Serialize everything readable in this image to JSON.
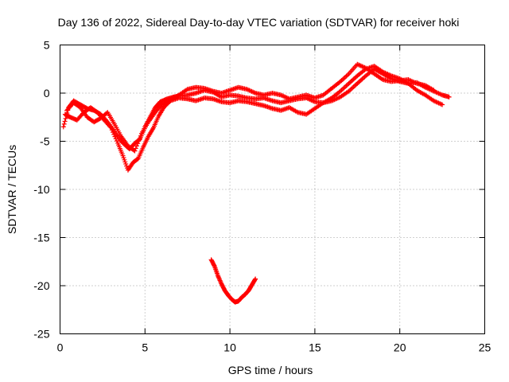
{
  "chart_data": {
    "type": "scatter",
    "title": "Day 136 of 2022, Sidereal Day-to-day VTEC variation (SDTVAR) for receiver hoki",
    "xlabel": "GPS time / hours",
    "ylabel": "SDTVAR / TECUs",
    "xlim": [
      0,
      25
    ],
    "ylim": [
      -25,
      5
    ],
    "xticks": [
      0,
      5,
      10,
      15,
      20,
      25
    ],
    "yticks": [
      5,
      0,
      -5,
      -10,
      -15,
      -20,
      -25
    ],
    "xtick_labels": [
      "0",
      "5",
      "10",
      "15",
      "20",
      "25"
    ],
    "ytick_labels": [
      "5",
      "0",
      "-5",
      "-10",
      "-15",
      "-20",
      "-25"
    ],
    "grid": true,
    "marker": "+",
    "color": "#ff0000",
    "series": [
      {
        "name": "main-band-a",
        "x": [
          0.2,
          0.5,
          0.8,
          1.2,
          1.6,
          2.0,
          2.4,
          2.8,
          3.2,
          3.6,
          3.9,
          4.1,
          4.4,
          4.7,
          5.0,
          5.3,
          5.6,
          5.9,
          6.3,
          6.7,
          7.0,
          7.5,
          8.0,
          8.5,
          9.0,
          9.5,
          10.0,
          10.5,
          11.0,
          11.5,
          12.0,
          12.5,
          13.0,
          13.5,
          14.0,
          14.5,
          15.0,
          15.5,
          16.0,
          16.5,
          17.0,
          17.5,
          18.0,
          18.5,
          19.0,
          19.5,
          20.0,
          20.5,
          21.0,
          21.5,
          22.0,
          22.5,
          22.9
        ],
        "y": [
          -3.5,
          -1.5,
          -0.8,
          -1.2,
          -1.6,
          -1.8,
          -2.2,
          -3.0,
          -4.0,
          -5.0,
          -5.5,
          -5.8,
          -5.2,
          -4.8,
          -3.5,
          -2.5,
          -1.5,
          -0.9,
          -0.6,
          -0.4,
          -0.3,
          -0.2,
          0.0,
          0.3,
          0.1,
          -0.4,
          -0.2,
          -0.3,
          -0.5,
          -0.6,
          -0.5,
          -0.8,
          -1.0,
          -0.8,
          -0.6,
          -0.5,
          -0.9,
          -1.0,
          -0.8,
          -0.4,
          0.2,
          1.0,
          1.8,
          2.5,
          2.0,
          1.5,
          1.2,
          1.0,
          1.1,
          0.6,
          0.2,
          -0.2,
          -0.4
        ]
      },
      {
        "name": "main-band-b",
        "x": [
          0.3,
          0.6,
          1.0,
          1.4,
          1.8,
          2.2,
          2.6,
          3.0,
          3.4,
          3.7,
          4.0,
          4.3,
          4.6,
          4.9,
          5.2,
          5.5,
          5.8,
          6.1,
          6.5,
          7.0,
          7.5,
          8.0,
          8.5,
          9.0,
          9.5,
          10.0,
          10.5,
          11.0,
          11.5,
          12.0,
          12.5,
          13.0,
          13.5,
          14.0,
          14.5,
          15.0,
          15.5,
          16.0,
          16.5,
          17.0,
          17.5,
          18.0,
          18.5,
          19.0,
          19.5,
          20.0,
          20.5,
          21.0,
          21.5,
          22.0,
          22.5
        ],
        "y": [
          -2.2,
          -2.5,
          -2.8,
          -2.0,
          -1.5,
          -2.0,
          -2.8,
          -3.6,
          -5.2,
          -6.5,
          -8.0,
          -7.2,
          -6.8,
          -5.6,
          -4.5,
          -3.6,
          -2.4,
          -1.5,
          -0.8,
          -0.5,
          -0.6,
          -0.8,
          -0.5,
          -0.6,
          -0.9,
          -1.0,
          -0.8,
          -0.9,
          -1.1,
          -1.3,
          -1.6,
          -1.8,
          -1.5,
          -2.0,
          -2.2,
          -1.6,
          -1.0,
          -0.5,
          0.2,
          1.0,
          1.8,
          2.5,
          2.8,
          2.2,
          1.8,
          1.5,
          1.0,
          0.3,
          -0.2,
          -0.8,
          -1.2
        ]
      },
      {
        "name": "main-band-c",
        "x": [
          0.4,
          0.8,
          1.2,
          1.6,
          2.0,
          2.4,
          2.8,
          3.2,
          3.6,
          4.0,
          4.4,
          4.8,
          5.2,
          5.6,
          6.0,
          6.5,
          7.0,
          7.5,
          8.0,
          8.5,
          9.0,
          9.5,
          10.0,
          10.5,
          11.0,
          11.5,
          12.0,
          12.5,
          13.0,
          13.5,
          14.0,
          14.5,
          15.0,
          15.5,
          16.0,
          16.5,
          17.0,
          17.5,
          18.0,
          18.5,
          19.0,
          19.5,
          20.0,
          20.5,
          21.0,
          21.5,
          22.0
        ],
        "y": [
          -1.8,
          -1.0,
          -1.5,
          -2.5,
          -3.0,
          -2.6,
          -2.0,
          -3.2,
          -4.5,
          -5.5,
          -6.0,
          -4.2,
          -3.0,
          -2.0,
          -1.2,
          -0.7,
          -0.2,
          0.4,
          0.6,
          0.5,
          0.2,
          0.0,
          0.3,
          0.6,
          0.4,
          0.0,
          -0.2,
          0.0,
          -0.2,
          -0.6,
          -0.4,
          -0.2,
          -0.5,
          -0.2,
          0.5,
          1.2,
          2.0,
          3.0,
          2.6,
          2.0,
          1.4,
          1.2,
          1.3,
          1.4,
          1.0,
          0.8,
          0.3
        ]
      },
      {
        "name": "isolated-arc",
        "x": [
          8.9,
          9.1,
          9.3,
          9.5,
          9.7,
          9.9,
          10.1,
          10.3,
          10.5,
          10.7,
          10.9,
          11.1,
          11.3,
          11.5
        ],
        "y": [
          -17.3,
          -18.0,
          -19.0,
          -19.8,
          -20.5,
          -21.0,
          -21.4,
          -21.7,
          -21.6,
          -21.2,
          -20.9,
          -20.5,
          -19.9,
          -19.3
        ]
      }
    ]
  }
}
